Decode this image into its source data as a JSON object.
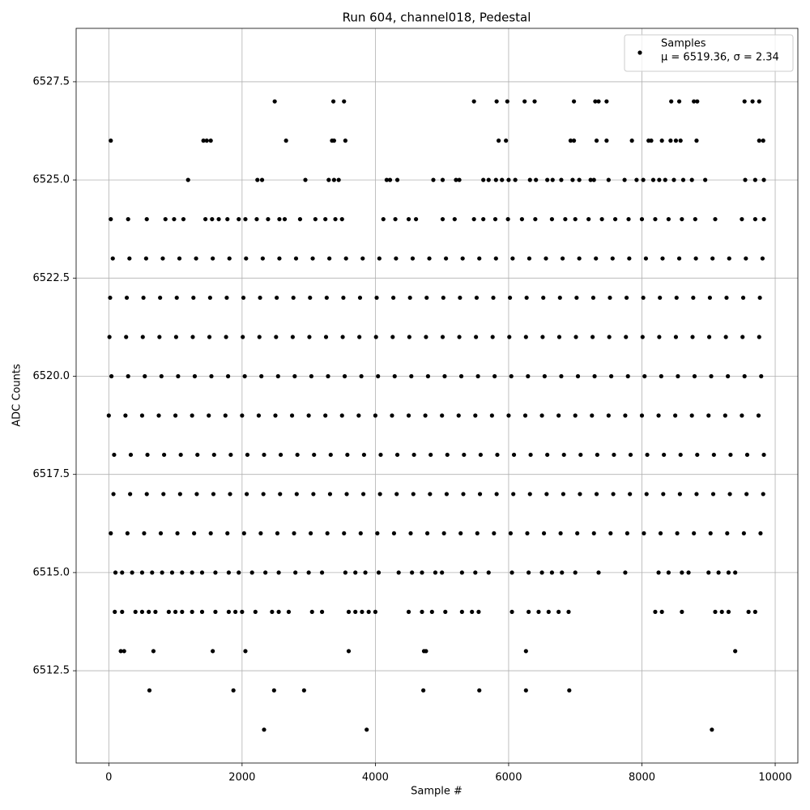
{
  "chart_data": {
    "type": "scatter",
    "title": "Run 604, channel018, Pedestal",
    "x_label": "Sample #",
    "y_label": "ADC Counts",
    "xlim": [
      -490,
      10340
    ],
    "ylim": [
      6510.15,
      6528.86
    ],
    "xticks": [
      0,
      2000,
      4000,
      6000,
      8000,
      10000
    ],
    "yticks": [
      {
        "value": 6512.5,
        "label": "6512.5"
      },
      {
        "value": 6515,
        "label": "6515.0"
      },
      {
        "value": 6517.5,
        "label": "6517.5"
      },
      {
        "value": 6520,
        "label": "6520.0"
      },
      {
        "value": 6522.5,
        "label": "6522.5"
      },
      {
        "value": 6525,
        "label": "6525.0"
      },
      {
        "value": 6527.5,
        "label": "6527.5"
      }
    ],
    "grid": true,
    "legend_position": "upper right",
    "legend_note": "μ = 6519.36, σ = 2.34",
    "series": [
      {
        "name": "Samples",
        "color": "#000000",
        "x": [
          2490,
          3370,
          3530,
          5480,
          5820,
          5980,
          6240,
          6390,
          6980,
          7300,
          7350,
          7470,
          8440,
          8560,
          8780,
          8830,
          9540,
          9660,
          9760,
          30,
          1420,
          1470,
          1530,
          2660,
          3350,
          3380,
          3550,
          5850,
          5960,
          6930,
          6980,
          7320,
          7470,
          7850,
          8100,
          8140,
          8300,
          8430,
          8510,
          8580,
          8820,
          9760,
          9820,
          1190,
          2230,
          2300,
          2950,
          3300,
          3380,
          3450,
          4170,
          4220,
          4330,
          4870,
          5010,
          5210,
          5260,
          5620,
          5700,
          5810,
          5900,
          6000,
          6100,
          6320,
          6410,
          6580,
          6660,
          6790,
          6960,
          7060,
          7230,
          7280,
          7500,
          7740,
          7920,
          8020,
          8170,
          8260,
          8350,
          8480,
          8620,
          8750,
          8950,
          9550,
          9700,
          9830,
          30,
          290,
          570,
          850,
          980,
          1120,
          1450,
          1550,
          1650,
          1780,
          1950,
          2050,
          2220,
          2390,
          2560,
          2640,
          2870,
          3100,
          3250,
          3400,
          3500,
          4120,
          4300,
          4500,
          4610,
          5010,
          5190,
          5480,
          5620,
          5800,
          5990,
          6200,
          6400,
          6650,
          6850,
          7000,
          7200,
          7400,
          7600,
          7800,
          8000,
          8200,
          8400,
          8600,
          8800,
          9100,
          9500,
          9700,
          9830,
          60,
          310,
          560,
          810,
          1060,
          1310,
          1560,
          1810,
          2060,
          2310,
          2560,
          2810,
          3060,
          3310,
          3560,
          3810,
          4060,
          4310,
          4560,
          4810,
          5060,
          5310,
          5560,
          5810,
          6060,
          6310,
          6560,
          6810,
          7060,
          7310,
          7560,
          7810,
          8060,
          8310,
          8560,
          8810,
          9060,
          9310,
          9560,
          9810,
          20,
          270,
          520,
          770,
          1020,
          1270,
          1520,
          1770,
          2020,
          2270,
          2520,
          2770,
          3020,
          3270,
          3520,
          3770,
          4020,
          4270,
          4520,
          4770,
          5020,
          5270,
          5520,
          5770,
          6020,
          6270,
          6520,
          6770,
          7020,
          7270,
          7520,
          7770,
          8020,
          8270,
          8520,
          8770,
          9020,
          9270,
          9520,
          9770,
          10,
          260,
          510,
          760,
          1010,
          1260,
          1510,
          1760,
          2010,
          2260,
          2510,
          2760,
          3010,
          3260,
          3510,
          3760,
          4010,
          4260,
          4510,
          4760,
          5010,
          5260,
          5510,
          5760,
          6010,
          6260,
          6510,
          6760,
          7010,
          7260,
          7510,
          7760,
          8010,
          8260,
          8510,
          8760,
          9010,
          9260,
          9510,
          9760,
          40,
          290,
          540,
          790,
          1040,
          1290,
          1540,
          1790,
          2040,
          2290,
          2540,
          2790,
          3040,
          3290,
          3540,
          3790,
          4040,
          4290,
          4540,
          4790,
          5040,
          5290,
          5540,
          5790,
          6040,
          6290,
          6540,
          6790,
          7040,
          7290,
          7540,
          7790,
          8040,
          8290,
          8540,
          8790,
          9040,
          9290,
          9540,
          9790,
          0,
          250,
          500,
          750,
          1000,
          1250,
          1500,
          1750,
          2000,
          2250,
          2500,
          2750,
          3000,
          3250,
          3500,
          3750,
          4000,
          4250,
          4500,
          4750,
          5000,
          5250,
          5500,
          5750,
          6000,
          6250,
          6500,
          6750,
          7000,
          7250,
          7500,
          7750,
          8000,
          8250,
          8500,
          8750,
          9000,
          9250,
          9500,
          9750,
          80,
          330,
          580,
          830,
          1080,
          1330,
          1580,
          1830,
          2080,
          2330,
          2580,
          2830,
          3080,
          3330,
          3580,
          3830,
          4080,
          4330,
          4580,
          4830,
          5080,
          5330,
          5580,
          5830,
          6080,
          6330,
          6580,
          6830,
          7080,
          7330,
          7580,
          7830,
          8080,
          8330,
          8580,
          8830,
          9080,
          9330,
          9580,
          9830,
          70,
          320,
          570,
          820,
          1070,
          1320,
          1570,
          1820,
          2070,
          2320,
          2570,
          2820,
          3070,
          3320,
          3570,
          3820,
          4070,
          4320,
          4570,
          4820,
          5070,
          5320,
          5570,
          5820,
          6070,
          6320,
          6570,
          6820,
          7070,
          7320,
          7570,
          7820,
          8070,
          8320,
          8570,
          8820,
          9070,
          9320,
          9570,
          9820,
          30,
          280,
          530,
          780,
          1030,
          1280,
          1530,
          1780,
          2030,
          2280,
          2530,
          2780,
          3030,
          3280,
          3530,
          3780,
          4030,
          4280,
          4530,
          4780,
          5030,
          5280,
          5530,
          5780,
          6030,
          6280,
          6530,
          6780,
          7030,
          7280,
          7530,
          7780,
          8030,
          8280,
          8530,
          8780,
          9030,
          9280,
          9530,
          9780,
          100,
          200,
          350,
          500,
          650,
          800,
          950,
          1100,
          1250,
          1400,
          1600,
          1800,
          1950,
          2150,
          2350,
          2550,
          2800,
          3000,
          3200,
          3550,
          3700,
          3850,
          4050,
          4350,
          4550,
          4700,
          4900,
          5000,
          5300,
          5500,
          5700,
          6050,
          6300,
          6500,
          6650,
          6800,
          7000,
          7350,
          7750,
          8250,
          8400,
          8600,
          8700,
          9000,
          9150,
          9300,
          9400,
          90,
          200,
          400,
          500,
          600,
          700,
          900,
          1000,
          1100,
          1250,
          1400,
          1600,
          1800,
          1900,
          2000,
          2200,
          2450,
          2550,
          2700,
          3050,
          3200,
          3600,
          3700,
          3800,
          3900,
          4000,
          4500,
          4700,
          4850,
          5050,
          5300,
          5450,
          5550,
          6050,
          6300,
          6450,
          6600,
          6750,
          6900,
          8200,
          8300,
          8600,
          9100,
          9200,
          9300,
          9600,
          9700,
          180,
          230,
          670,
          1560,
          2050,
          3600,
          4730,
          4760,
          6260,
          9400,
          610,
          1870,
          2480,
          2930,
          4720,
          5560,
          6260,
          6910,
          2330,
          3870,
          9050
        ],
        "values": [
          6527,
          6527,
          6527,
          6527,
          6527,
          6527,
          6527,
          6527,
          6527,
          6527,
          6527,
          6527,
          6527,
          6527,
          6527,
          6527,
          6527,
          6527,
          6527,
          6526,
          6526,
          6526,
          6526,
          6526,
          6526,
          6526,
          6526,
          6526,
          6526,
          6526,
          6526,
          6526,
          6526,
          6526,
          6526,
          6526,
          6526,
          6526,
          6526,
          6526,
          6526,
          6526,
          6526,
          6525,
          6525,
          6525,
          6525,
          6525,
          6525,
          6525,
          6525,
          6525,
          6525,
          6525,
          6525,
          6525,
          6525,
          6525,
          6525,
          6525,
          6525,
          6525,
          6525,
          6525,
          6525,
          6525,
          6525,
          6525,
          6525,
          6525,
          6525,
          6525,
          6525,
          6525,
          6525,
          6525,
          6525,
          6525,
          6525,
          6525,
          6525,
          6525,
          6525,
          6525,
          6525,
          6525,
          6524,
          6524,
          6524,
          6524,
          6524,
          6524,
          6524,
          6524,
          6524,
          6524,
          6524,
          6524,
          6524,
          6524,
          6524,
          6524,
          6524,
          6524,
          6524,
          6524,
          6524,
          6524,
          6524,
          6524,
          6524,
          6524,
          6524,
          6524,
          6524,
          6524,
          6524,
          6524,
          6524,
          6524,
          6524,
          6524,
          6524,
          6524,
          6524,
          6524,
          6524,
          6524,
          6524,
          6524,
          6524,
          6524,
          6524,
          6524,
          6524,
          6523,
          6523,
          6523,
          6523,
          6523,
          6523,
          6523,
          6523,
          6523,
          6523,
          6523,
          6523,
          6523,
          6523,
          6523,
          6523,
          6523,
          6523,
          6523,
          6523,
          6523,
          6523,
          6523,
          6523,
          6523,
          6523,
          6523,
          6523,
          6523,
          6523,
          6523,
          6523,
          6523,
          6523,
          6523,
          6523,
          6523,
          6523,
          6523,
          6523,
          6522,
          6522,
          6522,
          6522,
          6522,
          6522,
          6522,
          6522,
          6522,
          6522,
          6522,
          6522,
          6522,
          6522,
          6522,
          6522,
          6522,
          6522,
          6522,
          6522,
          6522,
          6522,
          6522,
          6522,
          6522,
          6522,
          6522,
          6522,
          6522,
          6522,
          6522,
          6522,
          6522,
          6522,
          6522,
          6522,
          6522,
          6522,
          6522,
          6522,
          6521,
          6521,
          6521,
          6521,
          6521,
          6521,
          6521,
          6521,
          6521,
          6521,
          6521,
          6521,
          6521,
          6521,
          6521,
          6521,
          6521,
          6521,
          6521,
          6521,
          6521,
          6521,
          6521,
          6521,
          6521,
          6521,
          6521,
          6521,
          6521,
          6521,
          6521,
          6521,
          6521,
          6521,
          6521,
          6521,
          6521,
          6521,
          6521,
          6521,
          6520,
          6520,
          6520,
          6520,
          6520,
          6520,
          6520,
          6520,
          6520,
          6520,
          6520,
          6520,
          6520,
          6520,
          6520,
          6520,
          6520,
          6520,
          6520,
          6520,
          6520,
          6520,
          6520,
          6520,
          6520,
          6520,
          6520,
          6520,
          6520,
          6520,
          6520,
          6520,
          6520,
          6520,
          6520,
          6520,
          6520,
          6520,
          6520,
          6520,
          6519,
          6519,
          6519,
          6519,
          6519,
          6519,
          6519,
          6519,
          6519,
          6519,
          6519,
          6519,
          6519,
          6519,
          6519,
          6519,
          6519,
          6519,
          6519,
          6519,
          6519,
          6519,
          6519,
          6519,
          6519,
          6519,
          6519,
          6519,
          6519,
          6519,
          6519,
          6519,
          6519,
          6519,
          6519,
          6519,
          6519,
          6519,
          6519,
          6519,
          6518,
          6518,
          6518,
          6518,
          6518,
          6518,
          6518,
          6518,
          6518,
          6518,
          6518,
          6518,
          6518,
          6518,
          6518,
          6518,
          6518,
          6518,
          6518,
          6518,
          6518,
          6518,
          6518,
          6518,
          6518,
          6518,
          6518,
          6518,
          6518,
          6518,
          6518,
          6518,
          6518,
          6518,
          6518,
          6518,
          6518,
          6518,
          6518,
          6518,
          6517,
          6517,
          6517,
          6517,
          6517,
          6517,
          6517,
          6517,
          6517,
          6517,
          6517,
          6517,
          6517,
          6517,
          6517,
          6517,
          6517,
          6517,
          6517,
          6517,
          6517,
          6517,
          6517,
          6517,
          6517,
          6517,
          6517,
          6517,
          6517,
          6517,
          6517,
          6517,
          6517,
          6517,
          6517,
          6517,
          6517,
          6517,
          6517,
          6517,
          6516,
          6516,
          6516,
          6516,
          6516,
          6516,
          6516,
          6516,
          6516,
          6516,
          6516,
          6516,
          6516,
          6516,
          6516,
          6516,
          6516,
          6516,
          6516,
          6516,
          6516,
          6516,
          6516,
          6516,
          6516,
          6516,
          6516,
          6516,
          6516,
          6516,
          6516,
          6516,
          6516,
          6516,
          6516,
          6516,
          6516,
          6516,
          6516,
          6516,
          6515,
          6515,
          6515,
          6515,
          6515,
          6515,
          6515,
          6515,
          6515,
          6515,
          6515,
          6515,
          6515,
          6515,
          6515,
          6515,
          6515,
          6515,
          6515,
          6515,
          6515,
          6515,
          6515,
          6515,
          6515,
          6515,
          6515,
          6515,
          6515,
          6515,
          6515,
          6515,
          6515,
          6515,
          6515,
          6515,
          6515,
          6515,
          6515,
          6515,
          6515,
          6515,
          6515,
          6515,
          6515,
          6515,
          6515,
          6514,
          6514,
          6514,
          6514,
          6514,
          6514,
          6514,
          6514,
          6514,
          6514,
          6514,
          6514,
          6514,
          6514,
          6514,
          6514,
          6514,
          6514,
          6514,
          6514,
          6514,
          6514,
          6514,
          6514,
          6514,
          6514,
          6514,
          6514,
          6514,
          6514,
          6514,
          6514,
          6514,
          6514,
          6514,
          6514,
          6514,
          6514,
          6514,
          6514,
          6514,
          6514,
          6514,
          6514,
          6514,
          6514,
          6514,
          6513,
          6513,
          6513,
          6513,
          6513,
          6513,
          6513,
          6513,
          6513,
          6513,
          6512,
          6512,
          6512,
          6512,
          6512,
          6512,
          6512,
          6512,
          6511,
          6511,
          6511
        ]
      }
    ]
  }
}
